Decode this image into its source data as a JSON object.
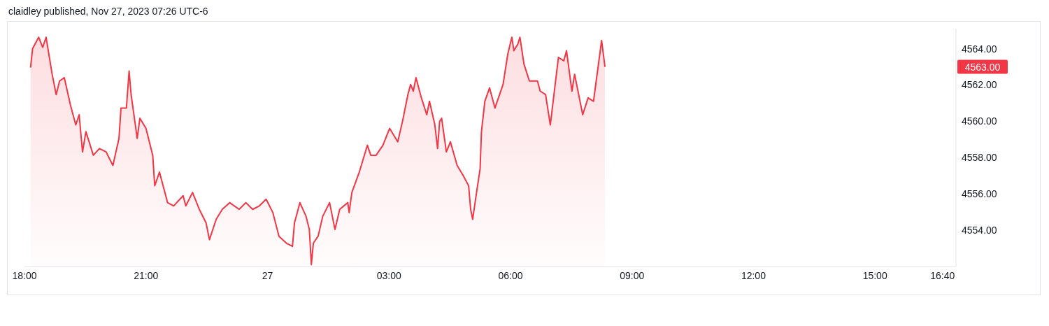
{
  "chart_data": {
    "type": "area",
    "title": "claidley published, Nov 27, 2023 07:26 UTC-6",
    "xlim": [
      "2023-11-26T18:00",
      "2023-11-27T17:00"
    ],
    "xticks": [
      {
        "value": "2023-11-26T18:00",
        "label": "18:00"
      },
      {
        "value": "2023-11-26T21:00",
        "label": "21:00"
      },
      {
        "value": "2023-11-27T00:00",
        "label": "27"
      },
      {
        "value": "2023-11-27T03:00",
        "label": "03:00"
      },
      {
        "value": "2023-11-27T06:00",
        "label": "06:00"
      },
      {
        "value": "2023-11-27T09:00",
        "label": "09:00"
      },
      {
        "value": "2023-11-27T12:00",
        "label": "12:00"
      },
      {
        "value": "2023-11-27T15:00",
        "label": "15:00"
      },
      {
        "value": "2023-11-27T16:40",
        "label": "16:40"
      }
    ],
    "ylim": [
      4552.0,
      4565.1
    ],
    "yticks": [
      {
        "value": 4554,
        "label": "4554.00"
      },
      {
        "value": 4556,
        "label": "4556.00"
      },
      {
        "value": 4558,
        "label": "4558.00"
      },
      {
        "value": 4560,
        "label": "4560.00"
      },
      {
        "value": 4562,
        "label": "4562.00"
      },
      {
        "value": 4564,
        "label": "4564.00"
      }
    ],
    "annotations": [
      "4563.00"
    ],
    "series": [
      {
        "color": "#f23645",
        "x": [
          "2023-11-26T18:09",
          "2023-11-26T18:12",
          "2023-11-26T18:21",
          "2023-11-26T18:27",
          "2023-11-26T18:32",
          "2023-11-26T18:41",
          "2023-11-26T18:47",
          "2023-11-26T18:52",
          "2023-11-26T18:59",
          "2023-11-26T19:08",
          "2023-11-26T19:16",
          "2023-11-26T19:21",
          "2023-11-26T19:26",
          "2023-11-26T19:31",
          "2023-11-26T19:42",
          "2023-11-26T19:51",
          "2023-11-26T20:01",
          "2023-11-26T20:11",
          "2023-11-26T20:20",
          "2023-11-26T20:23",
          "2023-11-26T20:31",
          "2023-11-26T20:35",
          "2023-11-26T20:38",
          "2023-11-26T20:47",
          "2023-11-26T20:51",
          "2023-11-26T21:00",
          "2023-11-26T21:10",
          "2023-11-26T21:13",
          "2023-11-26T21:20",
          "2023-11-26T21:28",
          "2023-11-26T21:32",
          "2023-11-26T21:41",
          "2023-11-26T21:55",
          "2023-11-26T21:59",
          "2023-11-26T22:09",
          "2023-11-26T22:19",
          "2023-11-26T22:29",
          "2023-11-26T22:34",
          "2023-11-26T22:44",
          "2023-11-26T22:53",
          "2023-11-26T23:04",
          "2023-11-26T23:18",
          "2023-11-26T23:28",
          "2023-11-26T23:38",
          "2023-11-26T23:48",
          "2023-11-26T23:58",
          "2023-11-27T00:08",
          "2023-11-27T00:17",
          "2023-11-27T00:28",
          "2023-11-27T00:37",
          "2023-11-27T00:40",
          "2023-11-27T00:48",
          "2023-11-27T00:57",
          "2023-11-27T01:02",
          "2023-11-27T01:05",
          "2023-11-27T01:08",
          "2023-11-27T01:15",
          "2023-11-27T01:22",
          "2023-11-27T01:32",
          "2023-11-27T01:40",
          "2023-11-27T01:47",
          "2023-11-27T01:59",
          "2023-11-27T02:01",
          "2023-11-27T02:05",
          "2023-11-27T02:16",
          "2023-11-27T02:25",
          "2023-11-27T02:28",
          "2023-11-27T02:33",
          "2023-11-27T02:41",
          "2023-11-27T02:51",
          "2023-11-27T03:01",
          "2023-11-27T03:13",
          "2023-11-27T03:20",
          "2023-11-27T03:28",
          "2023-11-27T03:32",
          "2023-11-27T03:36",
          "2023-11-27T03:40",
          "2023-11-27T03:48",
          "2023-11-27T03:56",
          "2023-11-27T04:00",
          "2023-11-27T04:08",
          "2023-11-27T04:12",
          "2023-11-27T04:15",
          "2023-11-27T04:18",
          "2023-11-27T04:25",
          "2023-11-27T04:31",
          "2023-11-27T04:41",
          "2023-11-27T04:50",
          "2023-11-27T04:58",
          "2023-11-27T05:01",
          "2023-11-27T05:04",
          "2023-11-27T05:09",
          "2023-11-27T05:15",
          "2023-11-27T05:17",
          "2023-11-27T05:22",
          "2023-11-27T05:29",
          "2023-11-27T05:37",
          "2023-11-27T05:49",
          "2023-11-27T05:56",
          "2023-11-27T06:02",
          "2023-11-27T06:05",
          "2023-11-27T06:11",
          "2023-11-27T06:14",
          "2023-11-27T06:20",
          "2023-11-27T06:28",
          "2023-11-27T06:40",
          "2023-11-27T06:44",
          "2023-11-27T06:52",
          "2023-11-27T06:59",
          "2023-11-27T07:05",
          "2023-11-27T07:11",
          "2023-11-27T07:19",
          "2023-11-27T07:23",
          "2023-11-27T07:31",
          "2023-11-27T07:35",
          "2023-11-27T07:47",
          "2023-11-27T07:55",
          "2023-11-27T08:03",
          "2023-11-27T08:07",
          "2023-11-27T08:15",
          "2023-11-27T08:20"
        ],
        "values": [
          4562.96,
          4564.0,
          4564.63,
          4564.07,
          4564.63,
          4562.59,
          4561.47,
          4562.22,
          4562.4,
          4560.91,
          4559.8,
          4560.36,
          4558.31,
          4559.43,
          4558.13,
          4558.5,
          4558.31,
          4557.57,
          4559.06,
          4560.73,
          4560.73,
          4562.77,
          4561.47,
          4559.06,
          4560.17,
          4559.61,
          4558.13,
          4556.45,
          4557.2,
          4556.08,
          4555.52,
          4555.34,
          4555.9,
          4555.34,
          4556.08,
          4555.15,
          4554.41,
          4553.48,
          4554.6,
          4555.15,
          4555.52,
          4555.15,
          4555.52,
          4555.15,
          4555.34,
          4555.71,
          4554.97,
          4553.67,
          4553.29,
          4553.11,
          4554.41,
          4555.52,
          4554.78,
          4554.04,
          4552.11,
          4553.29,
          4553.67,
          4554.78,
          4555.52,
          4554.04,
          4555.15,
          4555.52,
          4554.97,
          4556.08,
          4557.2,
          4558.31,
          4558.68,
          4558.13,
          4558.13,
          4558.68,
          4559.61,
          4558.87,
          4559.99,
          4561.47,
          4562.03,
          4561.66,
          4562.4,
          4561.29,
          4560.36,
          4561.1,
          4559.8,
          4558.5,
          4559.99,
          4560.17,
          4558.31,
          4558.87,
          4557.57,
          4557.01,
          4556.45,
          4555.15,
          4554.6,
          4555.9,
          4557.38,
          4559.43,
          4561.1,
          4561.84,
          4560.73,
          4562.03,
          4563.7,
          4564.63,
          4563.89,
          4564.26,
          4564.63,
          4563.15,
          4562.22,
          4562.22,
          4561.66,
          4561.47,
          4559.8,
          4561.66,
          4563.52,
          4563.33,
          4563.89,
          4561.66,
          4562.59,
          4560.36,
          4561.29,
          4561.1,
          4562.22,
          4564.45,
          4563.0
        ]
      }
    ]
  }
}
